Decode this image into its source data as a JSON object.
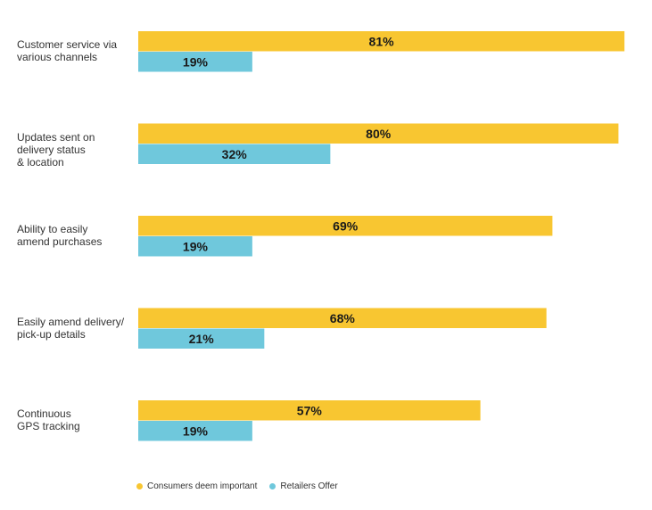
{
  "chart_data": {
    "type": "bar",
    "orientation": "horizontal",
    "categories": [
      "Customer service via\nvarious channels",
      "Updates sent on\ndelivery status\n& location",
      "Ability to easily\namend purchases",
      "Easily amend delivery/\npick-up details",
      "Continuous\nGPS tracking"
    ],
    "series": [
      {
        "name": "Consumers deem important",
        "color": "#f8c631",
        "values": [
          81,
          80,
          69,
          68,
          57
        ],
        "labels": [
          "81%",
          "80%",
          "69%",
          "68%",
          "57%"
        ]
      },
      {
        "name": "Retailers Offer",
        "color": "#6fc8dc",
        "values": [
          19,
          32,
          19,
          21,
          19
        ],
        "labels": [
          "19%",
          "32%",
          "19%",
          "21%",
          "19%"
        ]
      }
    ],
    "xlim": [
      0,
      100
    ],
    "grid": false,
    "legend_position": "bottom-left"
  }
}
